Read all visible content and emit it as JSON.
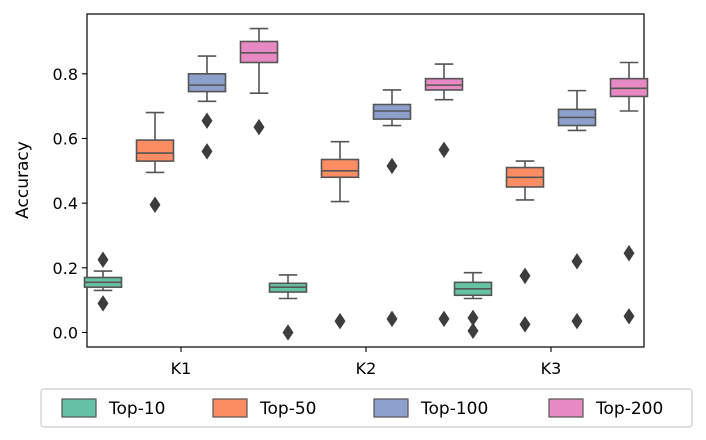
{
  "chart_data": {
    "type": "box",
    "title": "",
    "xlabel": "",
    "ylabel": "Accuracy",
    "ylim": [
      -0.045,
      0.985
    ],
    "yticks": [
      "0.0",
      "0.2",
      "0.4",
      "0.6",
      "0.8"
    ],
    "ytick_values": [
      0.0,
      0.2,
      0.4,
      0.6,
      0.8
    ],
    "categories": [
      "K1",
      "K2",
      "K3"
    ],
    "legend_position": "bottom",
    "series": [
      {
        "name": "Top-10",
        "color": "#66c2a5",
        "boxes": [
          {
            "whislo": 0.13,
            "q1": 0.14,
            "med": 0.155,
            "q3": 0.17,
            "whishi": 0.19,
            "fliers": [
              0.225,
              0.09
            ]
          },
          {
            "whislo": 0.105,
            "q1": 0.125,
            "med": 0.14,
            "q3": 0.152,
            "whishi": 0.178,
            "fliers": [
              0.0
            ]
          },
          {
            "whislo": 0.105,
            "q1": 0.115,
            "med": 0.135,
            "q3": 0.155,
            "whishi": 0.185,
            "fliers": [
              0.045,
              0.005
            ]
          }
        ]
      },
      {
        "name": "Top-50",
        "color": "#fc8d62",
        "boxes": [
          {
            "whislo": 0.495,
            "q1": 0.53,
            "med": 0.555,
            "q3": 0.595,
            "whishi": 0.68,
            "fliers": [
              0.395
            ]
          },
          {
            "whislo": 0.405,
            "q1": 0.48,
            "med": 0.5,
            "q3": 0.535,
            "whishi": 0.59,
            "fliers": [
              0.035
            ]
          },
          {
            "whislo": 0.41,
            "q1": 0.45,
            "med": 0.48,
            "q3": 0.51,
            "whishi": 0.53,
            "fliers": [
              0.175,
              0.025
            ]
          }
        ]
      },
      {
        "name": "Top-100",
        "color": "#8da0cb",
        "boxes": [
          {
            "whislo": 0.715,
            "q1": 0.745,
            "med": 0.765,
            "q3": 0.8,
            "whishi": 0.855,
            "fliers": [
              0.655,
              0.56
            ]
          },
          {
            "whislo": 0.64,
            "q1": 0.66,
            "med": 0.685,
            "q3": 0.705,
            "whishi": 0.75,
            "fliers": [
              0.515,
              0.042
            ]
          },
          {
            "whislo": 0.625,
            "q1": 0.64,
            "med": 0.665,
            "q3": 0.69,
            "whishi": 0.748,
            "fliers": [
              0.22,
              0.035
            ]
          }
        ]
      },
      {
        "name": "Top-200",
        "color": "#e78ac3",
        "boxes": [
          {
            "whislo": 0.74,
            "q1": 0.835,
            "med": 0.865,
            "q3": 0.9,
            "whishi": 0.94,
            "fliers": [
              0.635
            ]
          },
          {
            "whislo": 0.72,
            "q1": 0.75,
            "med": 0.765,
            "q3": 0.785,
            "whishi": 0.83,
            "fliers": [
              0.565,
              0.042
            ]
          },
          {
            "whislo": 0.685,
            "q1": 0.73,
            "med": 0.755,
            "q3": 0.785,
            "whishi": 0.835,
            "fliers": [
              0.245,
              0.05
            ]
          }
        ]
      }
    ]
  }
}
